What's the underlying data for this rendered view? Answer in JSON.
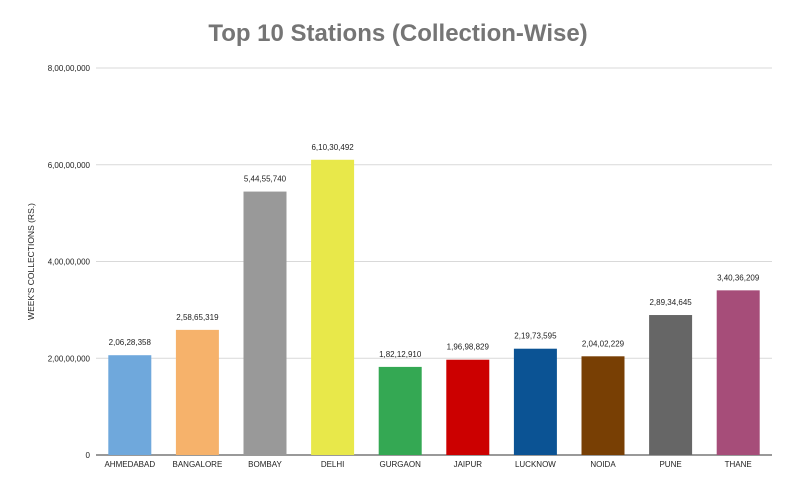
{
  "chart_data": {
    "type": "bar",
    "title": "Top 10 Stations (Collection-Wise)",
    "xlabel": "",
    "ylabel": "WEEK'S COLLECTIONS (RS.)",
    "ylim": [
      0,
      80000000
    ],
    "yticks": [
      {
        "value": 0,
        "label": "0"
      },
      {
        "value": 20000000,
        "label": "2,00,00,000"
      },
      {
        "value": 40000000,
        "label": "4,00,00,000"
      },
      {
        "value": 60000000,
        "label": "6,00,00,000"
      },
      {
        "value": 80000000,
        "label": "8,00,00,000"
      }
    ],
    "grid": true,
    "legend": "none",
    "categories": [
      "AHMEDABAD",
      "BANGALORE",
      "BOMBAY",
      "DELHI",
      "GURGAON",
      "JAIPUR",
      "LUCKNOW",
      "NOIDA",
      "PUNE",
      "THANE"
    ],
    "values": [
      20628358,
      25865319,
      54455740,
      61030492,
      18212910,
      19698829,
      21973595,
      20402229,
      28934645,
      34036209
    ],
    "value_labels": [
      "2,06,28,358",
      "2,58,65,319",
      "5,44,55,740",
      "6,10,30,492",
      "1,82,12,910",
      "1,96,98,829",
      "2,19,73,595",
      "2,04,02,229",
      "2,89,34,645",
      "3,40,36,209"
    ],
    "colors": [
      "#6fa8dc",
      "#f6b26b",
      "#999999",
      "#e8e84a",
      "#34a853",
      "#cc0000",
      "#0b5394",
      "#783f04",
      "#666666",
      "#a64d79"
    ]
  }
}
